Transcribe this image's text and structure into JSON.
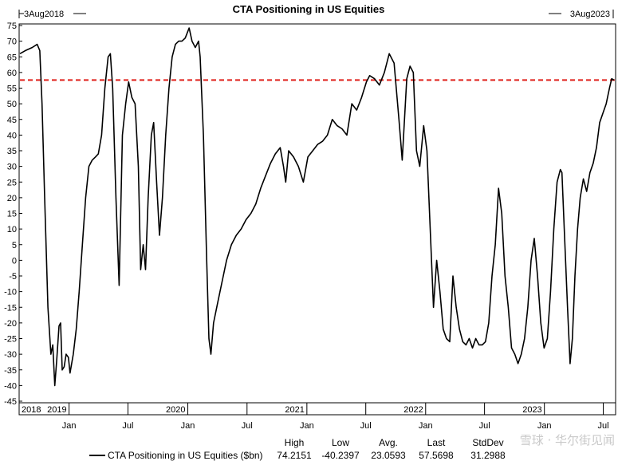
{
  "chart_data": {
    "type": "line",
    "title": "CTA Positioning in US Equities",
    "range_start": "3Aug2018",
    "range_end": "3Aug2023",
    "x_start": "2018-08-03",
    "x_end": "2023-08-03",
    "ylim": [
      -45,
      75
    ],
    "yticks": [
      75,
      70,
      65,
      60,
      55,
      50,
      45,
      40,
      35,
      30,
      25,
      20,
      15,
      10,
      5,
      0,
      -5,
      -10,
      -15,
      -20,
      -25,
      -30,
      -35,
      -40,
      -45
    ],
    "xticks": [
      {
        "date": "2019-01-01",
        "label": "Jan",
        "year": "2019"
      },
      {
        "date": "2019-07-01",
        "label": "Jul",
        "year": ""
      },
      {
        "date": "2020-01-01",
        "label": "Jan",
        "year": "2020"
      },
      {
        "date": "2020-07-01",
        "label": "Jul",
        "year": ""
      },
      {
        "date": "2021-01-01",
        "label": "Jan",
        "year": "2021"
      },
      {
        "date": "2021-07-01",
        "label": "Jul",
        "year": ""
      },
      {
        "date": "2022-01-01",
        "label": "Jan",
        "year": "2022"
      },
      {
        "date": "2022-07-01",
        "label": "Jul",
        "year": ""
      },
      {
        "date": "2023-01-01",
        "label": "Jan",
        "year": "2023"
      },
      {
        "date": "2023-07-01",
        "label": "Jul",
        "year": ""
      }
    ],
    "first_year_label": "2018",
    "reference_line": {
      "value": 57.5698,
      "color": "#e0201b",
      "style": "dashed"
    },
    "series": [
      {
        "name": "CTA Positioning in US Equities ($bn)",
        "color": "#000000",
        "points": [
          [
            "2018-08-03",
            66
          ],
          [
            "2018-08-20",
            67
          ],
          [
            "2018-09-10",
            68
          ],
          [
            "2018-09-25",
            69
          ],
          [
            "2018-10-03",
            67
          ],
          [
            "2018-10-10",
            50
          ],
          [
            "2018-10-18",
            20
          ],
          [
            "2018-10-28",
            -15
          ],
          [
            "2018-11-06",
            -30
          ],
          [
            "2018-11-12",
            -27
          ],
          [
            "2018-11-18",
            -40
          ],
          [
            "2018-11-24",
            -32
          ],
          [
            "2018-12-01",
            -21
          ],
          [
            "2018-12-06",
            -20
          ],
          [
            "2018-12-11",
            -35
          ],
          [
            "2018-12-17",
            -34
          ],
          [
            "2018-12-23",
            -30
          ],
          [
            "2018-12-30",
            -31
          ],
          [
            "2019-01-04",
            -36
          ],
          [
            "2019-01-14",
            -30
          ],
          [
            "2019-01-23",
            -22
          ],
          [
            "2019-02-01",
            -10
          ],
          [
            "2019-02-11",
            5
          ],
          [
            "2019-02-21",
            20
          ],
          [
            "2019-03-03",
            30
          ],
          [
            "2019-03-13",
            32
          ],
          [
            "2019-03-23",
            33
          ],
          [
            "2019-04-01",
            34
          ],
          [
            "2019-04-11",
            40
          ],
          [
            "2019-04-21",
            55
          ],
          [
            "2019-05-01",
            65
          ],
          [
            "2019-05-08",
            66
          ],
          [
            "2019-05-15",
            55
          ],
          [
            "2019-05-25",
            20
          ],
          [
            "2019-06-04",
            -8
          ],
          [
            "2019-06-14",
            40
          ],
          [
            "2019-06-24",
            50
          ],
          [
            "2019-07-03",
            57
          ],
          [
            "2019-07-13",
            52
          ],
          [
            "2019-07-23",
            50
          ],
          [
            "2019-08-02",
            30
          ],
          [
            "2019-08-09",
            -3
          ],
          [
            "2019-08-17",
            5
          ],
          [
            "2019-08-24",
            -3
          ],
          [
            "2019-09-01",
            20
          ],
          [
            "2019-09-11",
            40
          ],
          [
            "2019-09-18",
            44
          ],
          [
            "2019-09-27",
            25
          ],
          [
            "2019-10-06",
            8
          ],
          [
            "2019-10-15",
            20
          ],
          [
            "2019-10-25",
            40
          ],
          [
            "2019-11-04",
            55
          ],
          [
            "2019-11-14",
            65
          ],
          [
            "2019-11-24",
            69
          ],
          [
            "2019-12-04",
            70
          ],
          [
            "2019-12-14",
            70
          ],
          [
            "2019-12-24",
            71
          ],
          [
            "2020-01-05",
            74.2
          ],
          [
            "2020-01-14",
            70
          ],
          [
            "2020-01-24",
            68
          ],
          [
            "2020-02-03",
            70
          ],
          [
            "2020-02-08",
            65
          ],
          [
            "2020-02-18",
            40
          ],
          [
            "2020-02-28",
            0
          ],
          [
            "2020-03-06",
            -25
          ],
          [
            "2020-03-12",
            -30
          ],
          [
            "2020-03-20",
            -20
          ],
          [
            "2020-03-30",
            -15
          ],
          [
            "2020-04-09",
            -10
          ],
          [
            "2020-04-19",
            -5
          ],
          [
            "2020-04-29",
            0
          ],
          [
            "2020-05-14",
            5
          ],
          [
            "2020-05-29",
            8
          ],
          [
            "2020-06-13",
            10
          ],
          [
            "2020-06-28",
            13
          ],
          [
            "2020-07-13",
            15
          ],
          [
            "2020-07-28",
            18
          ],
          [
            "2020-08-12",
            23
          ],
          [
            "2020-08-27",
            27
          ],
          [
            "2020-09-11",
            31
          ],
          [
            "2020-09-26",
            34
          ],
          [
            "2020-10-11",
            36
          ],
          [
            "2020-10-21",
            30
          ],
          [
            "2020-10-28",
            25
          ],
          [
            "2020-11-06",
            35
          ],
          [
            "2020-11-21",
            33
          ],
          [
            "2020-12-06",
            30
          ],
          [
            "2020-12-21",
            25
          ],
          [
            "2021-01-04",
            33
          ],
          [
            "2021-01-19",
            35
          ],
          [
            "2021-02-03",
            37
          ],
          [
            "2021-02-18",
            38
          ],
          [
            "2021-03-05",
            40
          ],
          [
            "2021-03-20",
            45
          ],
          [
            "2021-04-04",
            43
          ],
          [
            "2021-04-19",
            42
          ],
          [
            "2021-05-04",
            40
          ],
          [
            "2021-05-19",
            50
          ],
          [
            "2021-06-03",
            48
          ],
          [
            "2021-06-18",
            52
          ],
          [
            "2021-07-03",
            57
          ],
          [
            "2021-07-13",
            59
          ],
          [
            "2021-07-28",
            58
          ],
          [
            "2021-08-12",
            56
          ],
          [
            "2021-08-27",
            60
          ],
          [
            "2021-09-11",
            66
          ],
          [
            "2021-09-26",
            63
          ],
          [
            "2021-10-11",
            45
          ],
          [
            "2021-10-21",
            32
          ],
          [
            "2021-11-04",
            58
          ],
          [
            "2021-11-14",
            62
          ],
          [
            "2021-11-24",
            60
          ],
          [
            "2021-12-04",
            35
          ],
          [
            "2021-12-14",
            30
          ],
          [
            "2021-12-26",
            43
          ],
          [
            "2022-01-05",
            35
          ],
          [
            "2022-01-15",
            10
          ],
          [
            "2022-01-25",
            -15
          ],
          [
            "2022-02-04",
            0
          ],
          [
            "2022-02-14",
            -10
          ],
          [
            "2022-02-24",
            -22
          ],
          [
            "2022-03-06",
            -25
          ],
          [
            "2022-03-16",
            -26
          ],
          [
            "2022-03-26",
            -5
          ],
          [
            "2022-04-05",
            -15
          ],
          [
            "2022-04-15",
            -22
          ],
          [
            "2022-04-25",
            -26
          ],
          [
            "2022-05-05",
            -27
          ],
          [
            "2022-05-15",
            -25
          ],
          [
            "2022-05-25",
            -28
          ],
          [
            "2022-06-04",
            -25
          ],
          [
            "2022-06-14",
            -27
          ],
          [
            "2022-06-24",
            -27
          ],
          [
            "2022-07-04",
            -26
          ],
          [
            "2022-07-14",
            -20
          ],
          [
            "2022-07-24",
            -5
          ],
          [
            "2022-08-03",
            5
          ],
          [
            "2022-08-13",
            23
          ],
          [
            "2022-08-23",
            15
          ],
          [
            "2022-09-02",
            -5
          ],
          [
            "2022-09-12",
            -15
          ],
          [
            "2022-09-22",
            -28
          ],
          [
            "2022-10-02",
            -30
          ],
          [
            "2022-10-12",
            -33
          ],
          [
            "2022-10-22",
            -30
          ],
          [
            "2022-11-01",
            -25
          ],
          [
            "2022-11-11",
            -15
          ],
          [
            "2022-11-21",
            0
          ],
          [
            "2022-12-01",
            7
          ],
          [
            "2022-12-11",
            -5
          ],
          [
            "2022-12-21",
            -20
          ],
          [
            "2022-12-31",
            -28
          ],
          [
            "2023-01-10",
            -25
          ],
          [
            "2023-01-20",
            -10
          ],
          [
            "2023-01-30",
            10
          ],
          [
            "2023-02-09",
            25
          ],
          [
            "2023-02-19",
            29
          ],
          [
            "2023-02-24",
            28
          ],
          [
            "2023-03-03",
            10
          ],
          [
            "2023-03-13",
            -15
          ],
          [
            "2023-03-21",
            -33
          ],
          [
            "2023-03-28",
            -25
          ],
          [
            "2023-04-05",
            -5
          ],
          [
            "2023-04-13",
            10
          ],
          [
            "2023-04-21",
            20
          ],
          [
            "2023-05-01",
            26
          ],
          [
            "2023-05-11",
            22
          ],
          [
            "2023-05-21",
            28
          ],
          [
            "2023-05-31",
            31
          ],
          [
            "2023-06-10",
            36
          ],
          [
            "2023-06-20",
            44
          ],
          [
            "2023-06-30",
            47
          ],
          [
            "2023-07-10",
            50
          ],
          [
            "2023-07-20",
            55
          ],
          [
            "2023-07-27",
            58
          ],
          [
            "2023-08-03",
            57.57
          ]
        ]
      }
    ],
    "stats": {
      "headers": [
        "High",
        "Low",
        "Avg.",
        "Last",
        "StdDev"
      ],
      "values": [
        "74.2151",
        "-40.2397",
        "23.0593",
        "57.5698",
        "31.2988"
      ]
    },
    "watermark": "雪球 · 华尔街见闻"
  }
}
